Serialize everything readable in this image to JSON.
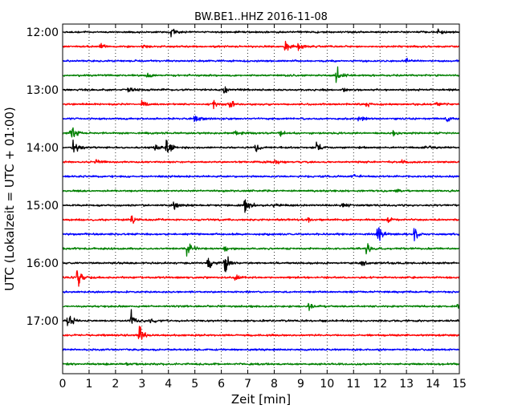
{
  "chart_data": {
    "type": "line",
    "title": "BW.BE1..HHZ 2016-11-08",
    "xlabel": "Zeit  [min]",
    "ylabel": "UTC (Lokalzeit = UTC + 01:00)",
    "xlim": [
      0,
      15
    ],
    "x_ticks": [
      "0",
      "1",
      "2",
      "3",
      "4",
      "5",
      "6",
      "7",
      "8",
      "9",
      "10",
      "11",
      "12",
      "13",
      "14",
      "15"
    ],
    "y_ticks": [
      "12:00",
      "13:00",
      "14:00",
      "15:00",
      "16:00",
      "17:00"
    ],
    "grid": true,
    "line_colors": [
      "#000000",
      "#ff0000",
      "#0000ff",
      "#008000"
    ],
    "traces": [
      {
        "start": "12:00",
        "events": [
          [
            4.1,
            0.5
          ],
          [
            14.2,
            0.7
          ]
        ]
      },
      {
        "start": "12:15",
        "events": [
          [
            1.4,
            0.3
          ],
          [
            3.0,
            0.3
          ],
          [
            8.4,
            1.0
          ],
          [
            8.9,
            0.6
          ]
        ]
      },
      {
        "start": "12:30",
        "events": [
          [
            13.0,
            0.3
          ]
        ]
      },
      {
        "start": "12:45",
        "events": [
          [
            3.2,
            0.3
          ],
          [
            10.35,
            1.0
          ]
        ]
      },
      {
        "start": "13:00",
        "events": [
          [
            2.5,
            0.5
          ],
          [
            6.1,
            0.5
          ],
          [
            10.6,
            0.3
          ]
        ]
      },
      {
        "start": "13:15",
        "events": [
          [
            3.0,
            0.3
          ],
          [
            5.7,
            0.4
          ],
          [
            6.3,
            0.6
          ],
          [
            11.5,
            0.3
          ],
          [
            14.1,
            0.3
          ]
        ]
      },
      {
        "start": "13:30",
        "events": [
          [
            5.0,
            0.6
          ],
          [
            11.2,
            0.4
          ],
          [
            14.5,
            0.3
          ]
        ]
      },
      {
        "start": "13:45",
        "events": [
          [
            0.3,
            1.4
          ],
          [
            6.5,
            0.3
          ],
          [
            8.2,
            0.4
          ],
          [
            12.5,
            0.3
          ]
        ]
      },
      {
        "start": "14:00",
        "events": [
          [
            0.35,
            1.2
          ],
          [
            3.5,
            0.6
          ],
          [
            3.9,
            1.3
          ],
          [
            7.3,
            0.4
          ],
          [
            9.6,
            0.5
          ],
          [
            13.7,
            0.4
          ]
        ]
      },
      {
        "start": "14:15",
        "events": [
          [
            1.2,
            0.3
          ],
          [
            8.0,
            0.3
          ],
          [
            12.8,
            0.3
          ]
        ]
      },
      {
        "start": "14:30",
        "events": [
          [
            11.0,
            0.2
          ]
        ]
      },
      {
        "start": "14:45",
        "events": [
          [
            12.6,
            0.3
          ]
        ]
      },
      {
        "start": "15:00",
        "events": [
          [
            4.2,
            0.5
          ],
          [
            6.9,
            1.4
          ],
          [
            8.0,
            0.3
          ],
          [
            10.5,
            0.3
          ]
        ]
      },
      {
        "start": "15:15",
        "events": [
          [
            2.6,
            0.6
          ],
          [
            9.3,
            0.3
          ],
          [
            12.3,
            0.3
          ]
        ]
      },
      {
        "start": "15:30",
        "events": [
          [
            11.9,
            1.1
          ],
          [
            13.3,
            0.8
          ]
        ]
      },
      {
        "start": "15:45",
        "events": [
          [
            4.7,
            1.3
          ],
          [
            6.1,
            0.4
          ],
          [
            11.5,
            0.9
          ]
        ]
      },
      {
        "start": "16:00",
        "events": [
          [
            5.5,
            0.9
          ],
          [
            6.1,
            1.5
          ],
          [
            11.3,
            0.4
          ]
        ]
      },
      {
        "start": "16:15",
        "events": [
          [
            0.55,
            1.5
          ],
          [
            6.5,
            0.4
          ]
        ]
      },
      {
        "start": "16:30",
        "events": []
      },
      {
        "start": "16:45",
        "events": [
          [
            9.3,
            0.4
          ],
          [
            14.9,
            0.3
          ]
        ]
      },
      {
        "start": "17:00",
        "events": [
          [
            0.2,
            1.0
          ],
          [
            2.6,
            1.0
          ],
          [
            3.3,
            0.3
          ]
        ]
      },
      {
        "start": "17:15",
        "events": [
          [
            2.9,
            1.3
          ]
        ]
      },
      {
        "start": "17:30",
        "events": []
      },
      {
        "start": "17:45",
        "events": [
          [
            2.4,
            0.2
          ]
        ]
      }
    ]
  }
}
